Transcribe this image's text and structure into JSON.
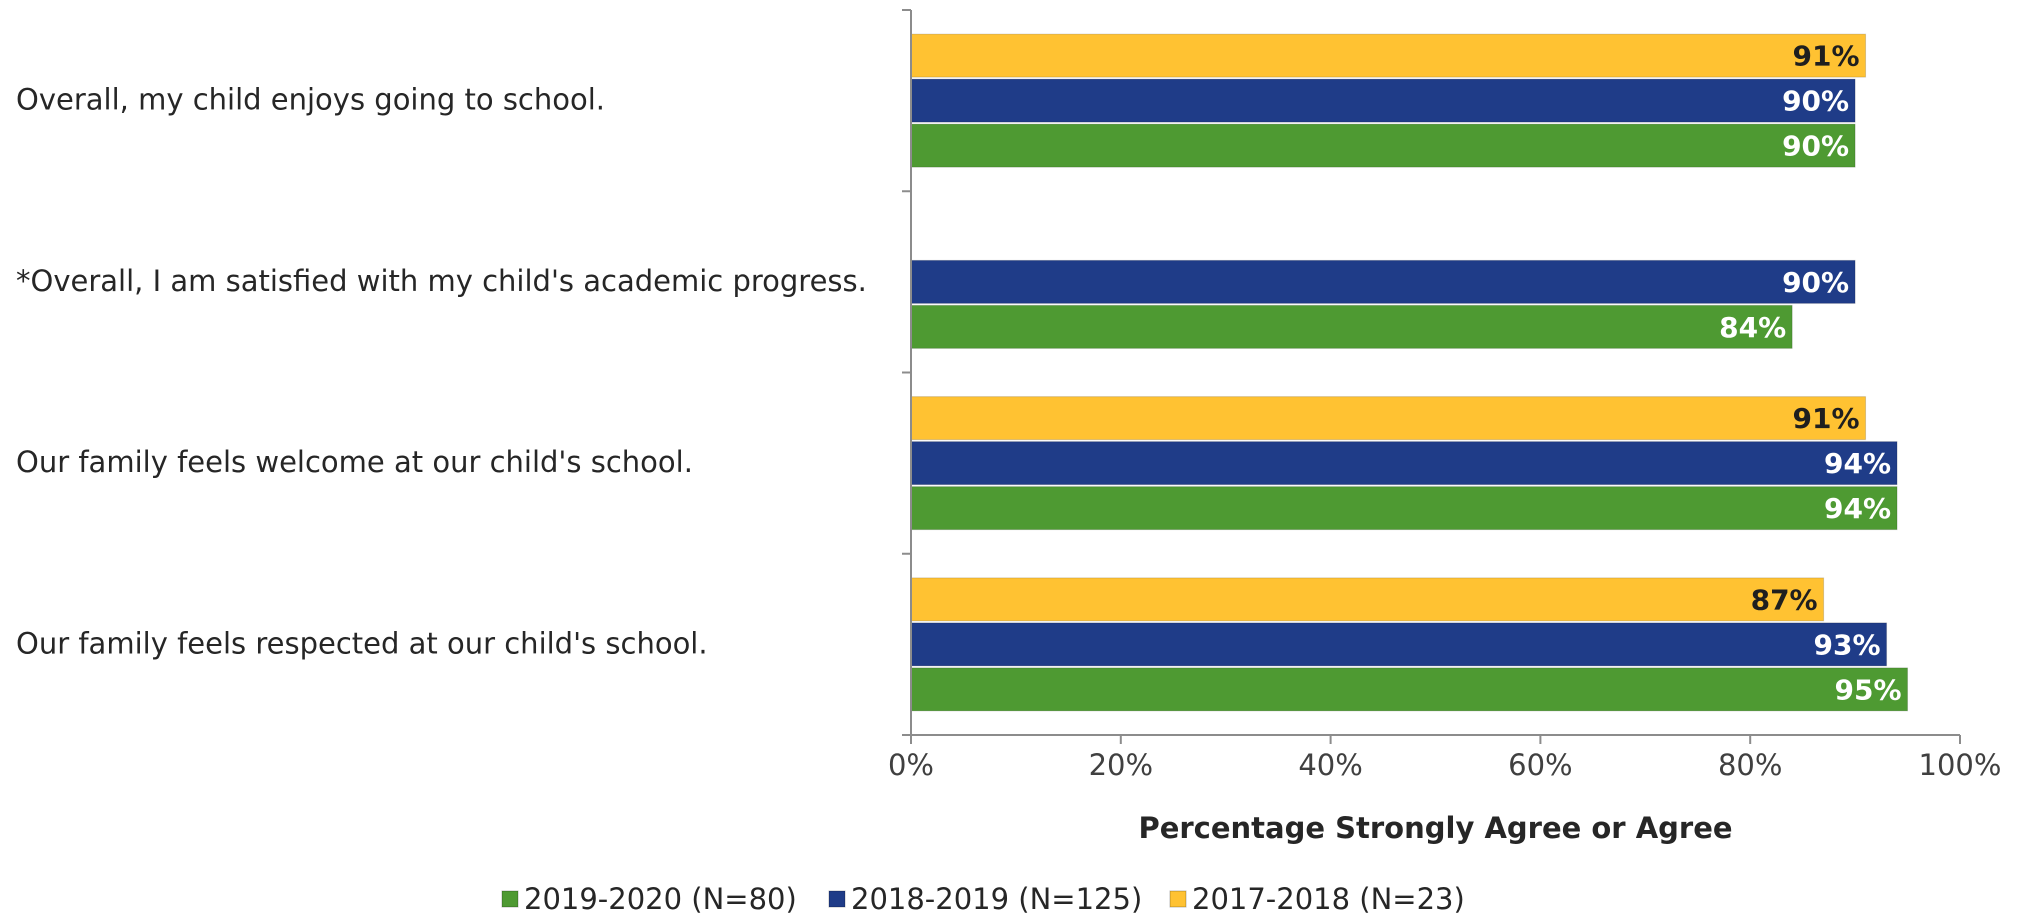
{
  "chart_data": {
    "type": "bar",
    "orientation": "horizontal",
    "categories": [
      "Overall, my child enjoys going to school.",
      "*Overall, I am satisfied with my child's academic progress.",
      "Our family feels welcome at our child's school.",
      "Our family feels respected at our child's school."
    ],
    "series": [
      {
        "name": "2017-2018 (N=23)",
        "color": "#FFC232",
        "label_color": "#1f1f1f",
        "values": [
          91,
          null,
          91,
          87
        ],
        "labels": [
          "91%",
          "",
          "91%",
          "87%"
        ]
      },
      {
        "name": "2018-2019 (N=125)",
        "color": "#1F3C88",
        "label_color": "#ffffff",
        "values": [
          90,
          90,
          94,
          93
        ],
        "labels": [
          "90%",
          "90%",
          "94%",
          "93%"
        ]
      },
      {
        "name": "2019-2020 (N=80)",
        "color": "#4E9A32",
        "label_color": "#ffffff",
        "values": [
          90,
          84,
          94,
          95
        ],
        "labels": [
          "90%",
          "84%",
          "94%",
          "95%"
        ]
      }
    ],
    "legend_order": [
      "2019-2020 (N=80)",
      "2018-2019 (N=125)",
      "2017-2018 (N=23)"
    ],
    "xlim": [
      0,
      100
    ],
    "x_ticks": [
      "0%",
      "20%",
      "40%",
      "60%",
      "80%",
      "100%"
    ],
    "xlabel": "Percentage Strongly Agree or Agree",
    "ylabel": "",
    "title": "",
    "grid": false,
    "legend_position": "bottom"
  }
}
